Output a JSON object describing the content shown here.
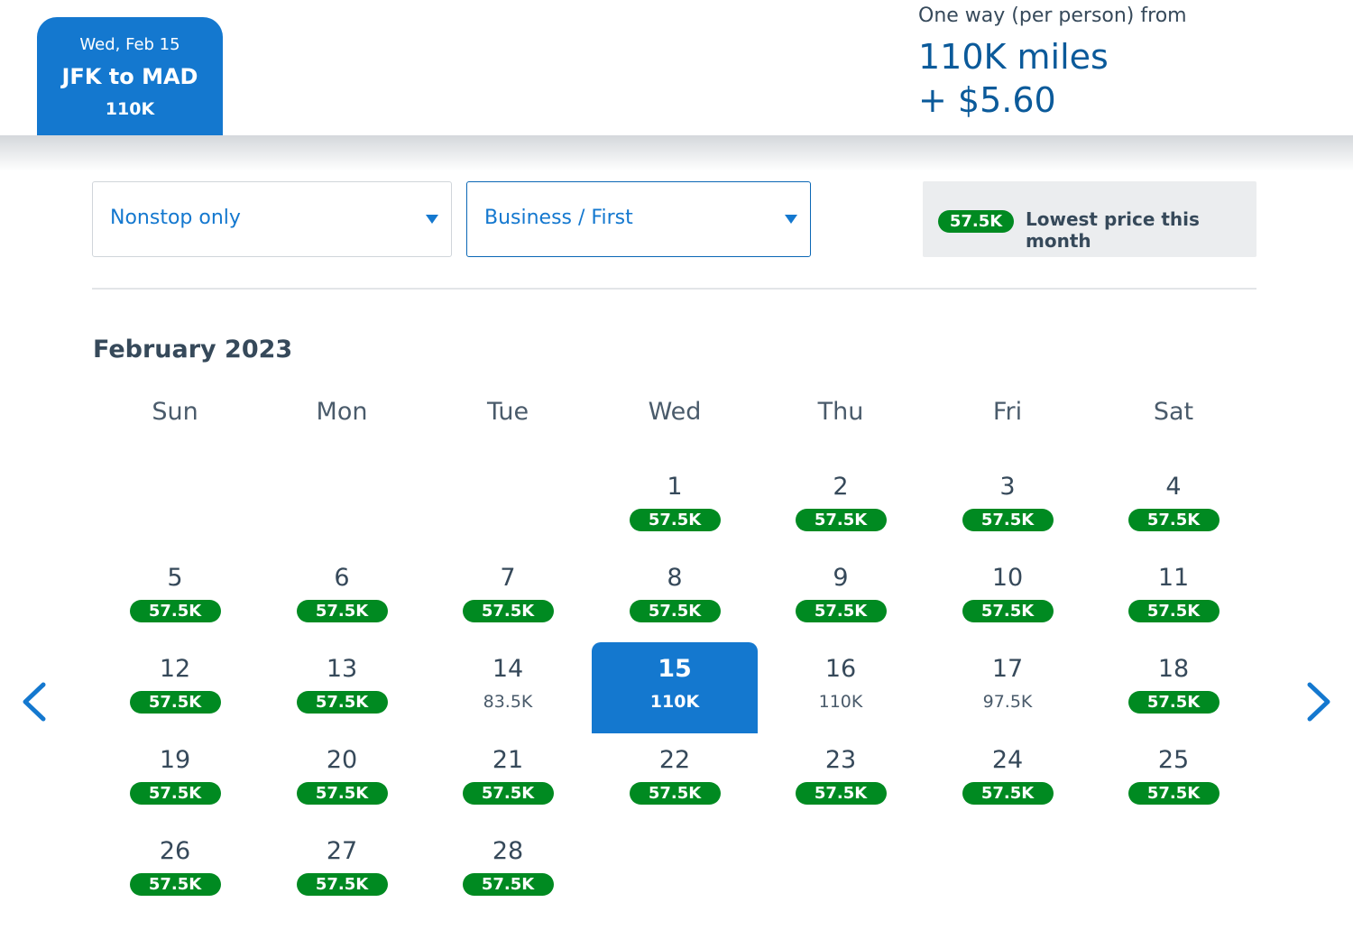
{
  "header": {
    "selected_tab": {
      "date": "Wed, Feb 15",
      "route": "JFK to MAD",
      "price": "110K"
    },
    "fare_summary": {
      "label": "One way (per person) from",
      "miles": "110K miles",
      "fee": "+ $5.60"
    }
  },
  "filters": {
    "stops": {
      "value": "Nonstop only"
    },
    "cabin": {
      "value": "Business / First"
    },
    "legend": {
      "badge": "57.5K",
      "text": "Lowest price this month"
    }
  },
  "calendar": {
    "month": "February 2023",
    "weekdays": [
      "Sun",
      "Mon",
      "Tue",
      "Wed",
      "Thu",
      "Fri",
      "Sat"
    ],
    "selected_day": "15",
    "days": [
      {
        "day": "1",
        "price": "57.5K",
        "lowest": true
      },
      {
        "day": "2",
        "price": "57.5K",
        "lowest": true
      },
      {
        "day": "3",
        "price": "57.5K",
        "lowest": true
      },
      {
        "day": "4",
        "price": "57.5K",
        "lowest": true
      },
      {
        "day": "5",
        "price": "57.5K",
        "lowest": true
      },
      {
        "day": "6",
        "price": "57.5K",
        "lowest": true
      },
      {
        "day": "7",
        "price": "57.5K",
        "lowest": true
      },
      {
        "day": "8",
        "price": "57.5K",
        "lowest": true
      },
      {
        "day": "9",
        "price": "57.5K",
        "lowest": true
      },
      {
        "day": "10",
        "price": "57.5K",
        "lowest": true
      },
      {
        "day": "11",
        "price": "57.5K",
        "lowest": true
      },
      {
        "day": "12",
        "price": "57.5K",
        "lowest": true
      },
      {
        "day": "13",
        "price": "57.5K",
        "lowest": true
      },
      {
        "day": "14",
        "price": "83.5K",
        "lowest": false
      },
      {
        "day": "15",
        "price": "110K",
        "lowest": false
      },
      {
        "day": "16",
        "price": "110K",
        "lowest": false
      },
      {
        "day": "17",
        "price": "97.5K",
        "lowest": false
      },
      {
        "day": "18",
        "price": "57.5K",
        "lowest": true
      },
      {
        "day": "19",
        "price": "57.5K",
        "lowest": true
      },
      {
        "day": "20",
        "price": "57.5K",
        "lowest": true
      },
      {
        "day": "21",
        "price": "57.5K",
        "lowest": true
      },
      {
        "day": "22",
        "price": "57.5K",
        "lowest": true
      },
      {
        "day": "23",
        "price": "57.5K",
        "lowest": true
      },
      {
        "day": "24",
        "price": "57.5K",
        "lowest": true
      },
      {
        "day": "25",
        "price": "57.5K",
        "lowest": true
      },
      {
        "day": "26",
        "price": "57.5K",
        "lowest": true
      },
      {
        "day": "27",
        "price": "57.5K",
        "lowest": true
      },
      {
        "day": "28",
        "price": "57.5K",
        "lowest": true
      }
    ]
  },
  "navigation": {
    "prev_icon": "chevron-left-icon",
    "next_icon": "chevron-right-icon"
  },
  "colors": {
    "brand_blue": "#1478cf",
    "dark_blue": "#0b5a9a",
    "lowest_green": "#008a21"
  }
}
